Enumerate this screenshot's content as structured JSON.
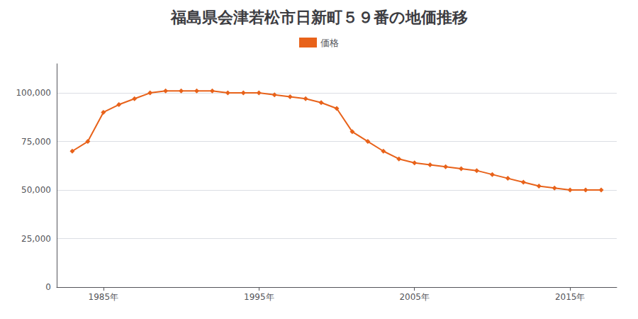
{
  "chart_data": {
    "type": "line",
    "title": "福島県会津若松市日新町５９番の地価推移",
    "series": [
      {
        "name": "価格",
        "color": "#E8621A",
        "marker": "diamond",
        "values": [
          70000,
          75000,
          90000,
          94000,
          97000,
          100000,
          101000,
          101000,
          101000,
          101000,
          100000,
          100000,
          100000,
          99000,
          98000,
          97000,
          95000,
          92000,
          80000,
          75000,
          70000,
          66000,
          64000,
          63000,
          62000,
          61000,
          60000,
          58000,
          56000,
          54000,
          52000,
          51000,
          50000,
          50000,
          50000
        ]
      }
    ],
    "x": [
      1983,
      1984,
      1985,
      1986,
      1987,
      1988,
      1989,
      1990,
      1991,
      1992,
      1993,
      1994,
      1995,
      1996,
      1997,
      1998,
      1999,
      2000,
      2001,
      2002,
      2003,
      2004,
      2005,
      2006,
      2007,
      2008,
      2009,
      2010,
      2011,
      2012,
      2013,
      2014,
      2015,
      2016,
      2017
    ],
    "xlim": [
      1982,
      2018
    ],
    "xticks": [
      {
        "value": 1985,
        "label": "1985年"
      },
      {
        "value": 1995,
        "label": "1995年"
      },
      {
        "value": 2005,
        "label": "2005年"
      },
      {
        "value": 2015,
        "label": "2015年"
      }
    ],
    "ylim": [
      0,
      115000
    ],
    "yticks": [
      0,
      {
        "value": 25000,
        "label": "25,000"
      },
      {
        "value": 50000,
        "label": "50,000"
      },
      {
        "value": 75000,
        "label": "75,000"
      },
      {
        "value": 100000,
        "label": "100,000"
      }
    ],
    "grid": true,
    "legend": "top"
  }
}
